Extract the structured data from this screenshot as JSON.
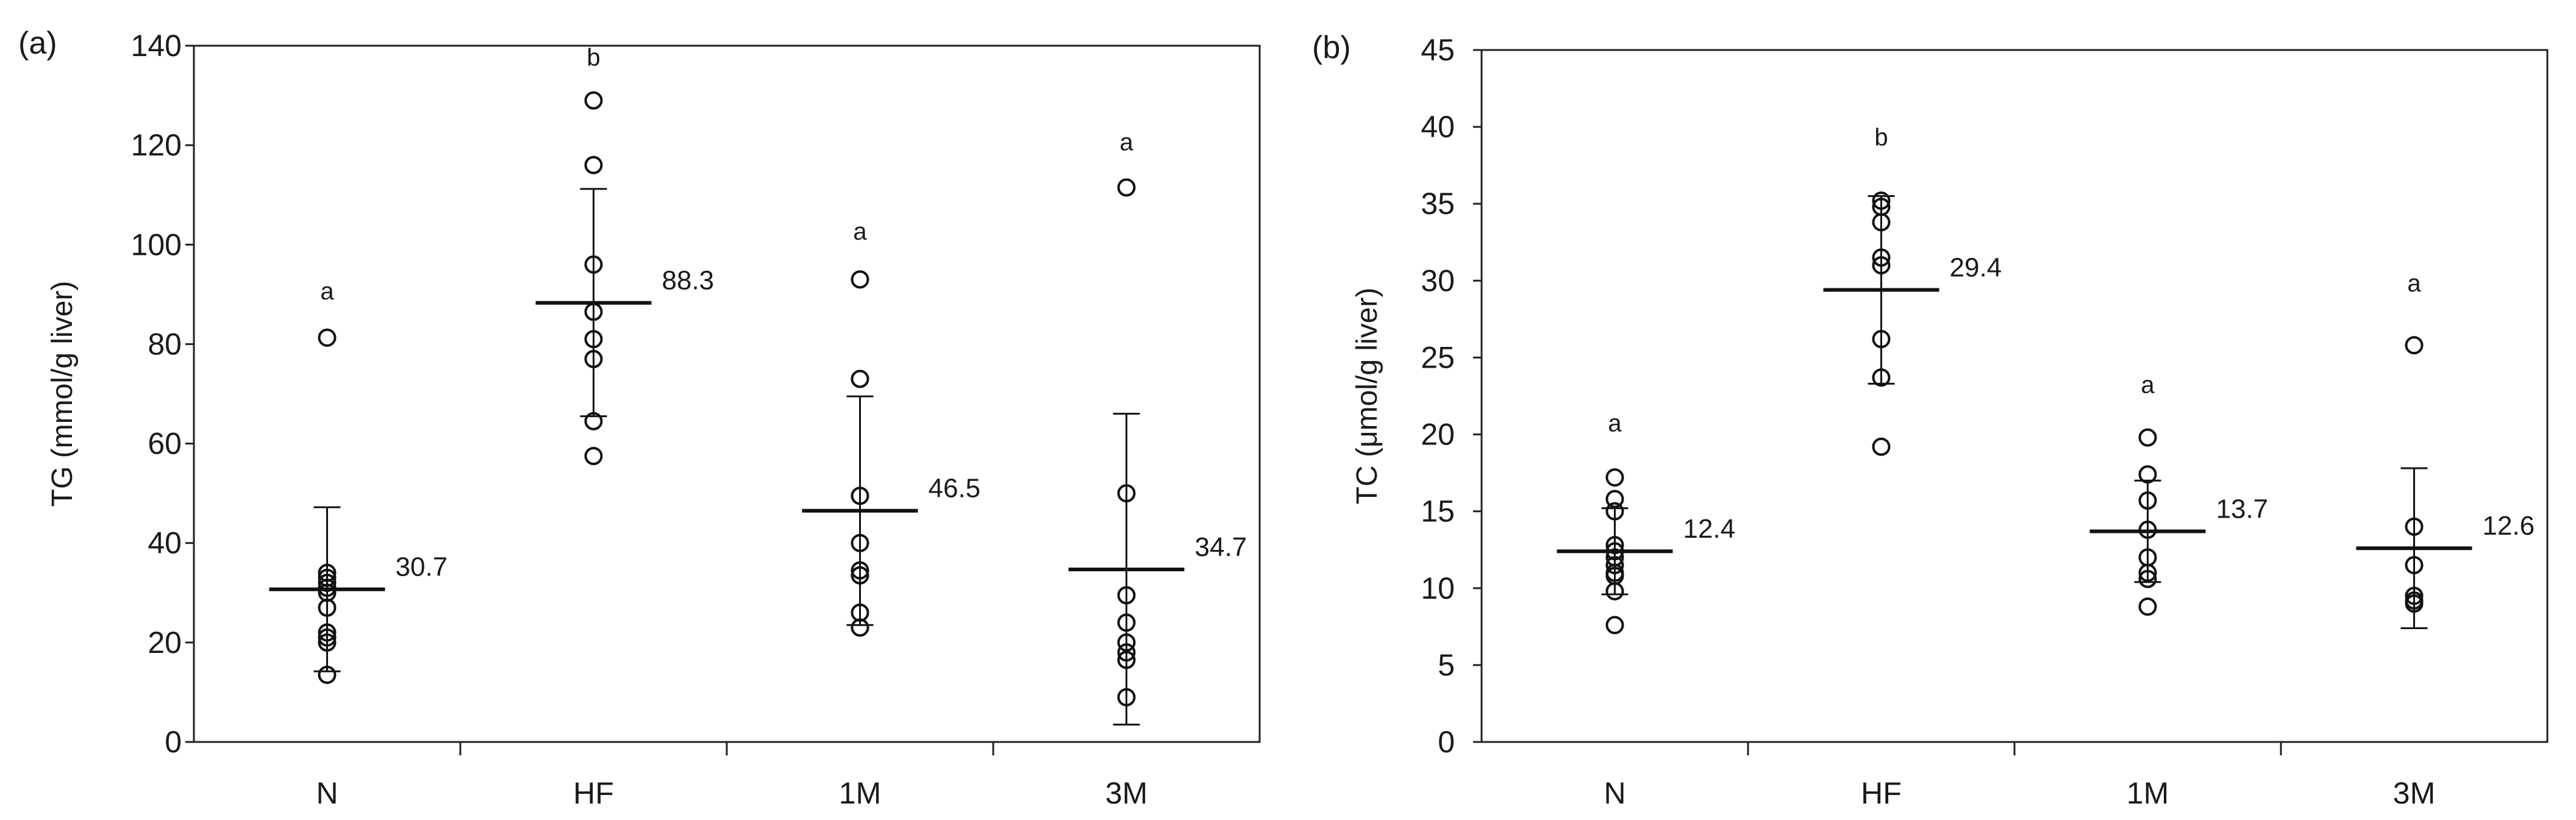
{
  "chart_data": [
    {
      "type": "scatter",
      "panel_label": "(a)",
      "ylabel": "TG (mmol/g liver)",
      "xlabel": "",
      "categories": [
        "N",
        "HF",
        "1M",
        "3M"
      ],
      "ylim": [
        0,
        140
      ],
      "yticks": [
        0,
        20,
        40,
        60,
        80,
        100,
        120,
        140
      ],
      "ytick_labels": [
        "0",
        "20",
        "40",
        "60",
        "80",
        "100",
        "120",
        "140"
      ],
      "grid": false,
      "groups": [
        {
          "category": "N",
          "points": [
            81.3,
            34,
            33,
            32,
            31,
            30,
            27,
            22,
            21,
            20,
            13.5
          ],
          "mean": 30.7,
          "mean_label": "30.7",
          "err_low": 14.2,
          "err_high": 47.2,
          "letter": "a",
          "letter_y": 89
        },
        {
          "category": "HF",
          "points": [
            129,
            116,
            96,
            86.5,
            81,
            77,
            64.5,
            57.5
          ],
          "mean": 88.3,
          "mean_label": "88.3",
          "err_low": 65.5,
          "err_high": 111.2,
          "letter": "b",
          "letter_y": 136
        },
        {
          "category": "1M",
          "points": [
            93,
            73,
            49.5,
            40,
            34.5,
            33.5,
            26,
            23
          ],
          "mean": 46.5,
          "mean_label": "46.5",
          "err_low": 23.5,
          "err_high": 69.5,
          "letter": "a",
          "letter_y": 101
        },
        {
          "category": "3M",
          "points": [
            111.5,
            50,
            29.5,
            24,
            20,
            18,
            16.5,
            9
          ],
          "mean": 34.7,
          "mean_label": "34.7",
          "err_low": 3.5,
          "err_high": 66,
          "letter": "a",
          "letter_y": 119
        }
      ]
    },
    {
      "type": "scatter",
      "panel_label": "(b)",
      "ylabel": "TC (μmol/g liver)",
      "xlabel": "",
      "categories": [
        "N",
        "HF",
        "1M",
        "3M"
      ],
      "ylim": [
        0,
        45
      ],
      "yticks": [
        0,
        5,
        10,
        15,
        20,
        25,
        30,
        35,
        40,
        45
      ],
      "ytick_labels": [
        "0",
        "5",
        "10",
        "15",
        "20",
        "25",
        "30",
        "35",
        "40",
        "45"
      ],
      "grid": false,
      "groups": [
        {
          "category": "N",
          "points": [
            17.2,
            15.8,
            15,
            12.8,
            12.4,
            12,
            11.5,
            11,
            10.8,
            9.8,
            7.6
          ],
          "mean": 12.4,
          "mean_label": "12.4",
          "err_low": 9.6,
          "err_high": 15.2,
          "letter": "a",
          "letter_y": 20.2
        },
        {
          "category": "HF",
          "points": [
            35.2,
            34.8,
            33.8,
            31.5,
            31,
            26.2,
            23.7,
            19.2
          ],
          "mean": 29.4,
          "mean_label": "29.4",
          "err_low": 23.3,
          "err_high": 35.5,
          "letter": "b",
          "letter_y": 38.8
        },
        {
          "category": "1M",
          "points": [
            19.8,
            17.4,
            15.7,
            13.8,
            12,
            11,
            10.6,
            8.8
          ],
          "mean": 13.7,
          "mean_label": "13.7",
          "err_low": 10.4,
          "err_high": 17,
          "letter": "a",
          "letter_y": 22.7
        },
        {
          "category": "3M",
          "points": [
            25.8,
            14,
            11.5,
            9.5,
            9.2,
            9
          ],
          "mean": 12.6,
          "mean_label": "12.6",
          "err_low": 7.4,
          "err_high": 17.8,
          "letter": "a",
          "letter_y": 29.3
        }
      ]
    }
  ]
}
